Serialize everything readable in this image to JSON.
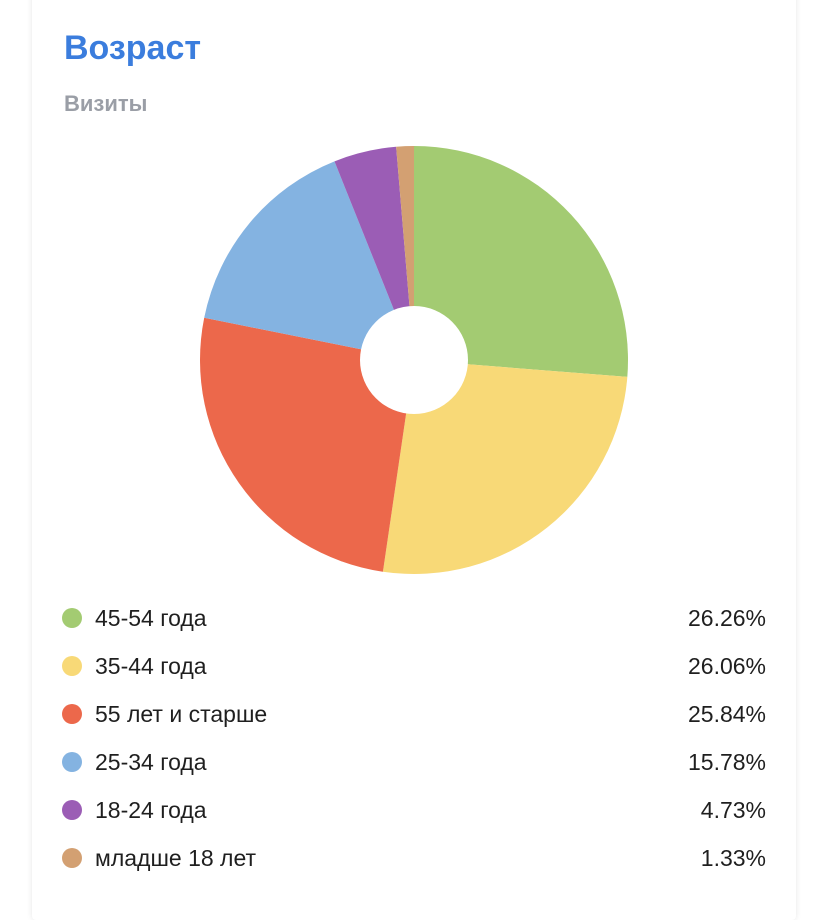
{
  "header": {
    "title": "Возраст",
    "subtitle": "Визиты"
  },
  "chart_data": {
    "type": "pie",
    "donut": true,
    "categories": [
      "45-54 года",
      "35-44 года",
      "55 лет и старше",
      "25-34 года",
      "18-24 года",
      "младше 18 лет"
    ],
    "values": [
      26.26,
      26.06,
      25.84,
      15.78,
      4.73,
      1.33
    ],
    "value_labels": [
      "26.26%",
      "26.06%",
      "25.84%",
      "15.78%",
      "4.73%",
      "1.33%"
    ],
    "colors": [
      "#a3cb72",
      "#f8d977",
      "#ec684b",
      "#84b3e1",
      "#9b5db5",
      "#d3a072"
    ],
    "title": "Возраст",
    "subtitle": "Визиты",
    "legend": "bottom"
  }
}
